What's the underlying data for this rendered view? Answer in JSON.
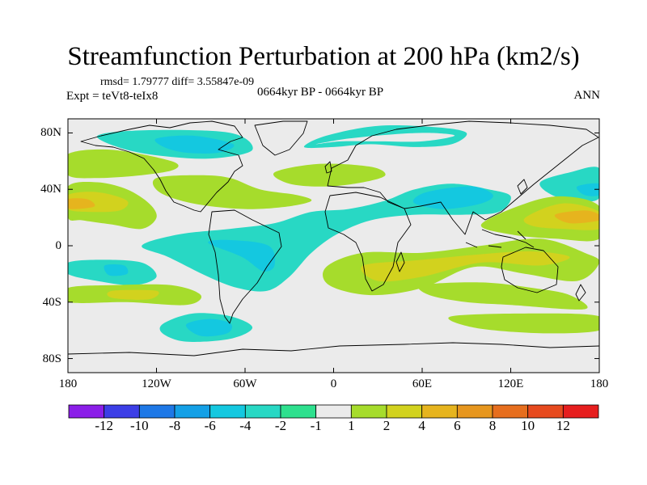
{
  "chart_data": {
    "type": "contour_map",
    "title": "Streamfunction Perturbation at 200 hPa (km2/s)",
    "stats_text": "rmsd= 1.79777 diff= 3.55847e-09",
    "experiment_text": "Expt = teVt8-teIx8",
    "period_text": "0664kyr BP - 0664kyr BP",
    "season_text": "ANN",
    "x_axis": {
      "range": [
        -180,
        180
      ],
      "ticks": [
        {
          "value": -180,
          "label": "180"
        },
        {
          "value": -120,
          "label": "120W"
        },
        {
          "value": -60,
          "label": "60W"
        },
        {
          "value": 0,
          "label": "0"
        },
        {
          "value": 60,
          "label": "60E"
        },
        {
          "value": 120,
          "label": "120E"
        },
        {
          "value": 180,
          "label": "180"
        }
      ]
    },
    "y_axis": {
      "range": [
        -90,
        90
      ],
      "ticks": [
        {
          "value": 80,
          "label": "80N"
        },
        {
          "value": 40,
          "label": "40N"
        },
        {
          "value": 0,
          "label": "0"
        },
        {
          "value": -40,
          "label": "40S"
        },
        {
          "value": -80,
          "label": "80S"
        }
      ]
    },
    "colorbar": {
      "labels": [
        "-12",
        "-10",
        "-8",
        "-6",
        "-4",
        "-2",
        "-1",
        "1",
        "2",
        "4",
        "6",
        "8",
        "10",
        "12"
      ],
      "colors": [
        "#8b1ee8",
        "#3c3ee6",
        "#1e78e6",
        "#14a0e6",
        "#14c8e0",
        "#28d8c4",
        "#2ee08e",
        "#ebebeb",
        "#a6dc2c",
        "#d2d21e",
        "#e6b41e",
        "#e6961e",
        "#e66e1e",
        "#e64a1e",
        "#e61e1e"
      ]
    },
    "field_regions": [
      {
        "level": "-2",
        "points": [
          [
            -130,
            0
          ],
          [
            -112,
            -8
          ],
          [
            -85,
            -22
          ],
          [
            -65,
            -30
          ],
          [
            -45,
            -32
          ],
          [
            -30,
            -22
          ],
          [
            -15,
            -5
          ],
          [
            2,
            8
          ],
          [
            25,
            18
          ],
          [
            55,
            22
          ],
          [
            88,
            22
          ],
          [
            112,
            24
          ],
          [
            120,
            35
          ],
          [
            105,
            40
          ],
          [
            80,
            44
          ],
          [
            55,
            40
          ],
          [
            35,
            32
          ],
          [
            10,
            26
          ],
          [
            -15,
            24
          ],
          [
            -40,
            16
          ],
          [
            -70,
            12
          ],
          [
            -105,
            8
          ]
        ]
      },
      {
        "level": "-4",
        "points": [
          [
            -85,
            2
          ],
          [
            -62,
            -8
          ],
          [
            -48,
            -18
          ],
          [
            -40,
            -14
          ],
          [
            -44,
            0
          ],
          [
            -70,
            4
          ]
        ]
      },
      {
        "level": "-4",
        "points": [
          [
            55,
            30
          ],
          [
            75,
            26
          ],
          [
            100,
            30
          ],
          [
            108,
            36
          ],
          [
            95,
            42
          ],
          [
            72,
            40
          ],
          [
            58,
            36
          ]
        ]
      },
      {
        "level": "-2",
        "points": [
          [
            -20,
            70
          ],
          [
            -5,
            78
          ],
          [
            30,
            85
          ],
          [
            70,
            84
          ],
          [
            90,
            80
          ],
          [
            80,
            72
          ],
          [
            55,
            70
          ],
          [
            25,
            72
          ],
          [
            0,
            70
          ]
        ]
      },
      {
        "level": "1",
        "points": [
          [
            -12,
            72
          ],
          [
            10,
            76
          ],
          [
            40,
            79
          ],
          [
            65,
            80
          ],
          [
            82,
            78
          ],
          [
            60,
            74
          ],
          [
            30,
            74
          ],
          [
            5,
            74
          ]
        ]
      },
      {
        "level": "-2",
        "points": [
          [
            -160,
            78
          ],
          [
            -125,
            82
          ],
          [
            -70,
            80
          ],
          [
            -55,
            68
          ],
          [
            -80,
            62
          ],
          [
            -110,
            63
          ],
          [
            -140,
            68
          ]
        ]
      },
      {
        "level": "-4",
        "points": [
          [
            -120,
            76
          ],
          [
            -95,
            78
          ],
          [
            -68,
            72
          ],
          [
            -78,
            66
          ],
          [
            -100,
            66
          ],
          [
            -115,
            70
          ]
        ]
      },
      {
        "level": "-2",
        "points": [
          [
            -115,
            -55
          ],
          [
            -95,
            -48
          ],
          [
            -70,
            -50
          ],
          [
            -55,
            -58
          ],
          [
            -70,
            -66
          ],
          [
            -100,
            -68
          ],
          [
            -116,
            -62
          ]
        ]
      },
      {
        "level": "-4",
        "points": [
          [
            -100,
            -56
          ],
          [
            -85,
            -52
          ],
          [
            -70,
            -55
          ],
          [
            -72,
            -62
          ],
          [
            -90,
            -64
          ]
        ]
      },
      {
        "level": "-2",
        "points": [
          [
            140,
            45
          ],
          [
            160,
            52
          ],
          [
            180,
            55
          ],
          [
            180,
            34
          ],
          [
            165,
            32
          ],
          [
            148,
            36
          ]
        ]
      },
      {
        "level": "-4",
        "points": [
          [
            165,
            42
          ],
          [
            180,
            44
          ],
          [
            180,
            36
          ],
          [
            170,
            36
          ]
        ]
      },
      {
        "level": "-2",
        "points": [
          [
            -180,
            -12
          ],
          [
            -158,
            -10
          ],
          [
            -130,
            -12
          ],
          [
            -120,
            -22
          ],
          [
            -135,
            -28
          ],
          [
            -160,
            -25
          ],
          [
            -180,
            -20
          ]
        ]
      },
      {
        "level": "-4",
        "points": [
          [
            -155,
            -14
          ],
          [
            -142,
            -14
          ],
          [
            -140,
            -20
          ],
          [
            -152,
            -21
          ]
        ]
      },
      {
        "level": "2",
        "points": [
          [
            -180,
            65
          ],
          [
            -150,
            68
          ],
          [
            -110,
            60
          ],
          [
            -108,
            54
          ],
          [
            -130,
            50
          ],
          [
            -160,
            48
          ],
          [
            -180,
            50
          ]
        ]
      },
      {
        "level": "2",
        "points": [
          [
            -180,
            42
          ],
          [
            -160,
            45
          ],
          [
            -140,
            40
          ],
          [
            -125,
            30
          ],
          [
            -120,
            20
          ],
          [
            -130,
            12
          ],
          [
            -150,
            15
          ],
          [
            -170,
            18
          ],
          [
            -180,
            20
          ]
        ]
      },
      {
        "level": "4",
        "points": [
          [
            -180,
            36
          ],
          [
            -160,
            38
          ],
          [
            -140,
            32
          ],
          [
            -145,
            25
          ],
          [
            -165,
            24
          ],
          [
            -180,
            26
          ]
        ]
      },
      {
        "level": "6",
        "points": [
          [
            -180,
            33
          ],
          [
            -167,
            33
          ],
          [
            -162,
            28
          ],
          [
            -175,
            26
          ],
          [
            -180,
            27
          ]
        ]
      },
      {
        "level": "2",
        "points": [
          [
            -120,
            48
          ],
          [
            -90,
            50
          ],
          [
            -70,
            48
          ],
          [
            -50,
            40
          ],
          [
            -25,
            36
          ],
          [
            -15,
            32
          ],
          [
            -30,
            28
          ],
          [
            -60,
            26
          ],
          [
            -95,
            30
          ],
          [
            -118,
            38
          ]
        ]
      },
      {
        "level": "2",
        "points": [
          [
            -40,
            52
          ],
          [
            -10,
            58
          ],
          [
            25,
            56
          ],
          [
            35,
            50
          ],
          [
            20,
            45
          ],
          [
            -5,
            42
          ],
          [
            -30,
            44
          ]
        ]
      },
      {
        "level": "2",
        "points": [
          [
            -5,
            -15
          ],
          [
            20,
            -5
          ],
          [
            60,
            -5
          ],
          [
            100,
            0
          ],
          [
            140,
            5
          ],
          [
            170,
            -5
          ],
          [
            180,
            -12
          ],
          [
            165,
            -25
          ],
          [
            130,
            -20
          ],
          [
            95,
            -15
          ],
          [
            60,
            -30
          ],
          [
            25,
            -35
          ],
          [
            -3,
            -28
          ]
        ]
      },
      {
        "level": "4",
        "points": [
          [
            20,
            -14
          ],
          [
            60,
            -10
          ],
          [
            100,
            -6
          ],
          [
            135,
            -4
          ],
          [
            160,
            -8
          ],
          [
            140,
            -14
          ],
          [
            100,
            -12
          ],
          [
            60,
            -22
          ],
          [
            30,
            -25
          ]
        ]
      },
      {
        "level": "2",
        "points": [
          [
            100,
            15
          ],
          [
            130,
            30
          ],
          [
            155,
            35
          ],
          [
            180,
            28
          ],
          [
            180,
            5
          ],
          [
            150,
            5
          ],
          [
            120,
            8
          ]
        ]
      },
      {
        "level": "4",
        "points": [
          [
            130,
            20
          ],
          [
            155,
            30
          ],
          [
            180,
            24
          ],
          [
            180,
            12
          ],
          [
            155,
            12
          ],
          [
            135,
            14
          ]
        ]
      },
      {
        "level": "6",
        "points": [
          [
            150,
            22
          ],
          [
            170,
            25
          ],
          [
            180,
            22
          ],
          [
            180,
            18
          ],
          [
            160,
            16
          ]
        ]
      },
      {
        "level": "2",
        "points": [
          [
            -180,
            -30
          ],
          [
            -150,
            -28
          ],
          [
            -110,
            -28
          ],
          [
            -90,
            -35
          ],
          [
            -100,
            -42
          ],
          [
            -140,
            -40
          ],
          [
            -180,
            -40
          ]
        ]
      },
      {
        "level": "4",
        "points": [
          [
            -150,
            -32
          ],
          [
            -120,
            -32
          ],
          [
            -125,
            -38
          ],
          [
            -150,
            -37
          ]
        ]
      },
      {
        "level": "2",
        "points": [
          [
            60,
            -28
          ],
          [
            100,
            -26
          ],
          [
            135,
            -30
          ],
          [
            160,
            -35
          ],
          [
            170,
            -45
          ],
          [
            120,
            -42
          ],
          [
            90,
            -40
          ],
          [
            65,
            -35
          ]
        ]
      },
      {
        "level": "2",
        "points": [
          [
            80,
            -50
          ],
          [
            140,
            -48
          ],
          [
            180,
            -50
          ],
          [
            180,
            -60
          ],
          [
            140,
            -62
          ],
          [
            95,
            -58
          ]
        ]
      }
    ]
  }
}
